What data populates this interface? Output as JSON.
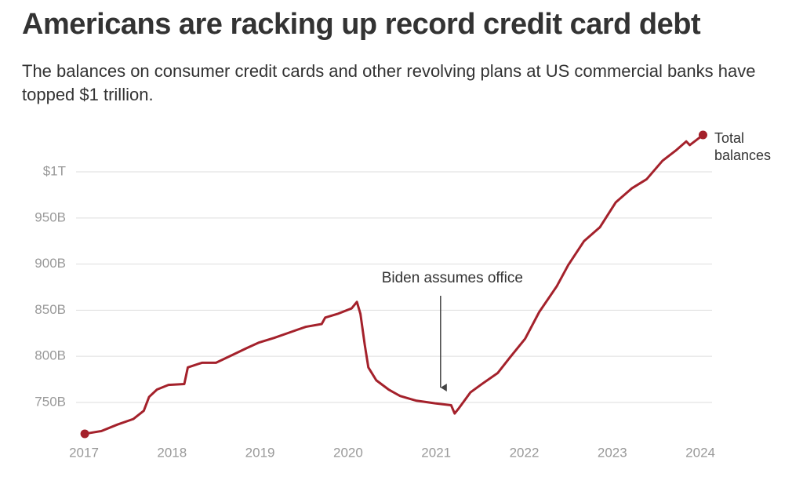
{
  "chart_data": {
    "type": "line",
    "title": "Americans are racking up record credit card debt",
    "subtitle": "The balances on consumer credit cards and other revolving plans at US commercial banks have topped $1 trillion.",
    "annotation": "Biden assumes office",
    "annotation_x": 2021.05,
    "x": [
      2017.01,
      2017.2,
      2017.38,
      2017.56,
      2017.68,
      2017.74,
      2017.83,
      2017.96,
      2018.14,
      2018.18,
      2018.34,
      2018.5,
      2018.72,
      2018.85,
      2018.99,
      2019.16,
      2019.34,
      2019.52,
      2019.7,
      2019.74,
      2019.88,
      2020.04,
      2020.1,
      2020.14,
      2020.19,
      2020.23,
      2020.32,
      2020.46,
      2020.59,
      2020.77,
      2020.99,
      2021.17,
      2021.21,
      2021.26,
      2021.39,
      2021.52,
      2021.7,
      2021.84,
      2022.01,
      2022.17,
      2022.37,
      2022.5,
      2022.68,
      2022.86,
      2023.04,
      2023.22,
      2023.39,
      2023.57,
      2023.72,
      2023.84,
      2023.88,
      2024.03
    ],
    "series": [
      {
        "name": "Total balances",
        "color": "#a4212b",
        "values": [
          716,
          719,
          726,
          732,
          741,
          756,
          764,
          769,
          770,
          788,
          793,
          793,
          803,
          809,
          815,
          820,
          826,
          832,
          835,
          842,
          846,
          852,
          859,
          846,
          812,
          788,
          774,
          764,
          757,
          752,
          749,
          747,
          738,
          744,
          761,
          770,
          782,
          799,
          819,
          848,
          876,
          899,
          925,
          940,
          967,
          982,
          992,
          1012,
          1023,
          1033,
          1029,
          1040
        ]
      }
    ],
    "xlim": [
      2017,
      2024.2
    ],
    "xticks": [
      2017,
      2018,
      2019,
      2020,
      2021,
      2022,
      2023,
      2024
    ],
    "ylim": [
      710,
      1040
    ],
    "yticks": [
      {
        "value": 750,
        "label": "750B"
      },
      {
        "value": 800,
        "label": "800B"
      },
      {
        "value": 850,
        "label": "850B"
      },
      {
        "value": 900,
        "label": "900B"
      },
      {
        "value": 950,
        "label": "950B"
      },
      {
        "value": 1000,
        "label": "$1T"
      }
    ],
    "grid": true
  }
}
